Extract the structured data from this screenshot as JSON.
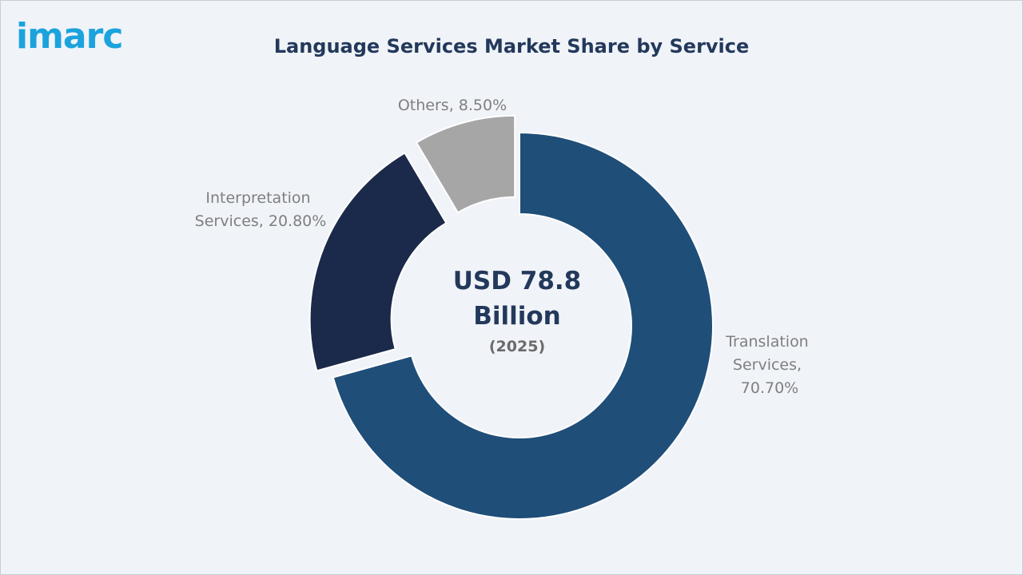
{
  "brand": {
    "logo_text": "imarc"
  },
  "chart_data": {
    "type": "pie",
    "title": "Language Services Market Share by Service",
    "center_text": {
      "line1": "USD 78.8",
      "line2": "Billion",
      "line3": "(2025)"
    },
    "slices": [
      {
        "label_lines": [
          "Translation",
          "Services,",
          "70.70%"
        ],
        "value": 70.7,
        "color": "#1f4e79",
        "exploded": false
      },
      {
        "label_lines": [
          "Interpretation",
          "Services, 20.80%"
        ],
        "value": 20.8,
        "color": "#1b2a4a",
        "exploded": true
      },
      {
        "label_lines": [
          "Others, 8.50%"
        ],
        "value": 8.5,
        "color": "#a6a6a6",
        "exploded": true
      }
    ]
  }
}
